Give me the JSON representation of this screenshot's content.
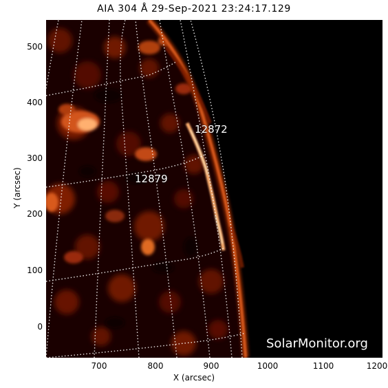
{
  "title": "AIA 304 Å 29-Sep-2021 23:24:17.129",
  "x_axis": {
    "label": "X (arcsec)",
    "ticks": [
      "700",
      "800",
      "900",
      "1000",
      "1100",
      "1200"
    ]
  },
  "y_axis": {
    "label": "Y (arcsec)",
    "ticks": [
      "500",
      "400",
      "300",
      "200",
      "100",
      "0"
    ]
  },
  "regions": [
    {
      "number": "12872"
    },
    {
      "number": "12879"
    }
  ],
  "watermark": "SolarMonitor.org",
  "colors": {
    "background": "#000000",
    "disk_dark": "#1a0000",
    "disk_mid": "#7a1a00",
    "disk_bright": "#ff9a3c",
    "grid": "#ffffff"
  },
  "icons": [
    "solar-disk-image"
  ]
}
